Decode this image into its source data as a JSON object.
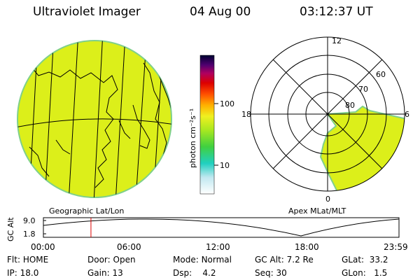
{
  "header": {
    "title": "Ultraviolet Imager",
    "date": "04 Aug 00",
    "time": "03:12:37 UT"
  },
  "colorbar": {
    "unit_label": "photon cm⁻²s⁻¹",
    "ticks": [
      "100",
      "10"
    ]
  },
  "geo_panel": {
    "label": "Geographic Lat/Lon"
  },
  "polar_panel": {
    "label": "Apex MLat/MLT",
    "mlt_labels": [
      "12",
      "18",
      "6",
      "0"
    ],
    "lat_labels": [
      "60",
      "70",
      "80"
    ]
  },
  "altitude_plot": {
    "ylabel": "GC Alt",
    "yticks": [
      "9.0",
      "1.8"
    ],
    "xticks": [
      "00:00",
      "06:00",
      "12:00",
      "18:00",
      "23:59"
    ],
    "current_time_marker_hour": 3.21
  },
  "info": {
    "flt_label": "Flt:",
    "flt_value": "HOME",
    "ip_label": "IP:",
    "ip_value": "18.0",
    "door_label": "Door:",
    "door_value": "Open",
    "gain_label": "Gain:",
    "gain_value": "13",
    "mode_label": "Mode:",
    "mode_value": "Normal",
    "dsp_label": "Dsp:",
    "dsp_value": "4.2",
    "gcalt_label": "GC Alt:",
    "gcalt_value": "7.2 Re",
    "seq_label": "Seq:",
    "seq_value": "30",
    "glat_label": "GLat:",
    "glat_value": "33.2",
    "glon_label": "GLon:",
    "glon_value": "1.5"
  },
  "colors": {
    "emission": "#dcef1a",
    "emission_edge": "#7fd08a",
    "marker": "#dd0000"
  }
}
